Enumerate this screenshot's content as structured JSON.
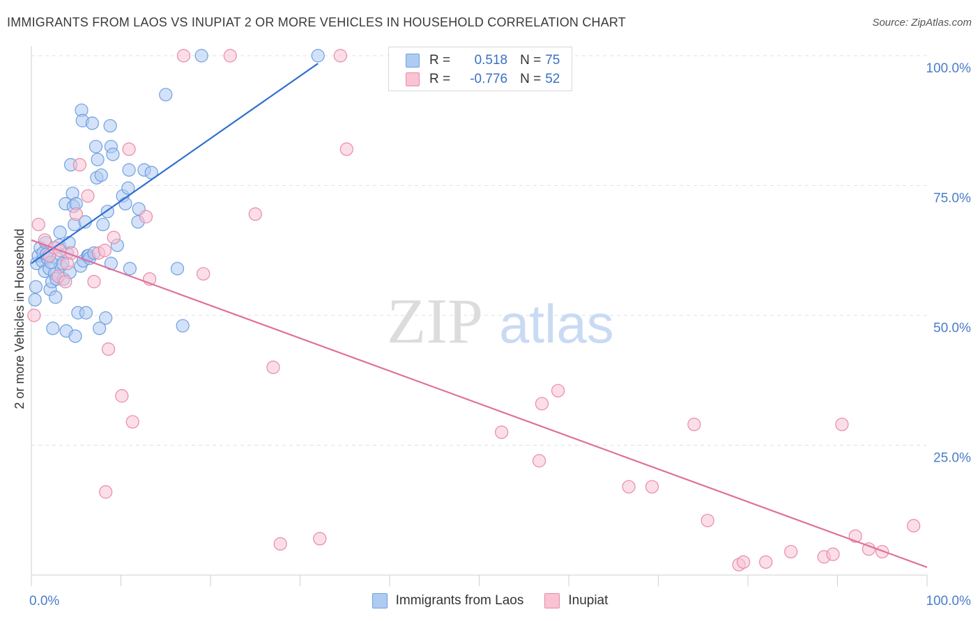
{
  "header": {
    "title": "IMMIGRANTS FROM LAOS VS INUPIAT 2 OR MORE VEHICLES IN HOUSEHOLD CORRELATION CHART",
    "source": "Source: ZipAtlas.com"
  },
  "watermark": {
    "zip": "ZIP",
    "atlas": "atlas"
  },
  "legend": {
    "rows": [
      {
        "r_label": "R =",
        "r_value": "0.518",
        "n_label": "N =",
        "n_value": "75",
        "color": "#aecbf2",
        "border": "#6f9fe0"
      },
      {
        "r_label": "R =",
        "r_value": "-0.776",
        "n_label": "N =",
        "n_value": "52",
        "color": "#f8c3d3",
        "border": "#e88aa8"
      }
    ]
  },
  "bottom_legend": {
    "items": [
      {
        "label": "Immigrants from Laos",
        "color": "#aecbf2",
        "border": "#6f9fe0"
      },
      {
        "label": "Inupiat",
        "color": "#f8c3d3",
        "border": "#e88aa8"
      }
    ]
  },
  "chart_data": {
    "type": "scatter",
    "title": "IMMIGRANTS FROM LAOS VS INUPIAT 2 OR MORE VEHICLES IN HOUSEHOLD CORRELATION CHART",
    "xlabel": "",
    "ylabel": "2 or more Vehicles in Household",
    "xlim": [
      0,
      100
    ],
    "ylim": [
      0,
      100
    ],
    "x_tick_labels": [
      "0.0%",
      "100.0%"
    ],
    "y_tick_labels": [
      {
        "value": 25,
        "label": "25.0%"
      },
      {
        "value": 50,
        "label": "50.0%"
      },
      {
        "value": 75,
        "label": "75.0%"
      },
      {
        "value": 100,
        "label": "100.0%"
      }
    ],
    "grid": true,
    "legend_position": "top-center",
    "series": [
      {
        "name": "Immigrants from Laos",
        "color": "#6f9fe0",
        "fill": "#aecbf2",
        "trend": {
          "x": [
            0,
            32
          ],
          "y": [
            60,
            98.5
          ],
          "color": "#2f6fd0"
        },
        "points": [
          [
            0.4,
            53.0
          ],
          [
            0.5,
            55.5
          ],
          [
            0.6,
            60.0
          ],
          [
            0.8,
            61.5
          ],
          [
            1.0,
            63.0
          ],
          [
            1.2,
            60.5
          ],
          [
            1.3,
            62.0
          ],
          [
            1.5,
            58.5
          ],
          [
            1.6,
            64.0
          ],
          [
            1.8,
            61.0
          ],
          [
            2.0,
            59.0
          ],
          [
            2.1,
            55.0
          ],
          [
            2.3,
            56.5
          ],
          [
            2.4,
            47.5
          ],
          [
            2.6,
            58.0
          ],
          [
            2.7,
            53.5
          ],
          [
            2.8,
            57.0
          ],
          [
            3.0,
            61.0
          ],
          [
            3.1,
            63.5
          ],
          [
            3.2,
            66.0
          ],
          [
            3.3,
            59.5
          ],
          [
            3.5,
            60.0
          ],
          [
            3.6,
            57.0
          ],
          [
            3.8,
            71.5
          ],
          [
            3.9,
            47.0
          ],
          [
            4.0,
            62.0
          ],
          [
            4.2,
            64.0
          ],
          [
            4.4,
            79.0
          ],
          [
            4.6,
            73.5
          ],
          [
            4.7,
            71.0
          ],
          [
            4.8,
            67.5
          ],
          [
            4.9,
            46.0
          ],
          [
            5.0,
            71.5
          ],
          [
            5.2,
            50.5
          ],
          [
            5.5,
            59.5
          ],
          [
            5.6,
            89.5
          ],
          [
            5.7,
            87.5
          ],
          [
            5.8,
            60.5
          ],
          [
            6.0,
            68.0
          ],
          [
            6.1,
            50.5
          ],
          [
            6.3,
            61.5
          ],
          [
            6.4,
            61.5
          ],
          [
            6.5,
            61.0
          ],
          [
            6.8,
            87.0
          ],
          [
            7.0,
            62.0
          ],
          [
            7.2,
            82.5
          ],
          [
            7.3,
            76.5
          ],
          [
            7.4,
            80.0
          ],
          [
            7.6,
            47.5
          ],
          [
            7.8,
            77.0
          ],
          [
            8.0,
            67.5
          ],
          [
            8.3,
            49.5
          ],
          [
            8.5,
            70.0
          ],
          [
            8.9,
            82.5
          ],
          [
            9.1,
            81.0
          ],
          [
            8.8,
            86.5
          ],
          [
            8.9,
            60.0
          ],
          [
            9.6,
            63.5
          ],
          [
            10.2,
            73.0
          ],
          [
            10.5,
            71.5
          ],
          [
            10.8,
            74.5
          ],
          [
            10.9,
            78.0
          ],
          [
            11.0,
            59.0
          ],
          [
            11.9,
            68.0
          ],
          [
            12.0,
            70.5
          ],
          [
            12.6,
            78.0
          ],
          [
            13.4,
            77.5
          ],
          [
            15.0,
            92.5
          ],
          [
            16.3,
            59.0
          ],
          [
            16.9,
            48.0
          ],
          [
            19.0,
            100.0
          ],
          [
            32.0,
            100.0
          ],
          [
            1.7,
            61.8
          ],
          [
            2.2,
            60.2
          ],
          [
            4.3,
            58.3
          ]
        ]
      },
      {
        "name": "Inupiat",
        "color": "#e88aa8",
        "fill": "#f8c3d3",
        "trend": {
          "x": [
            0,
            100
          ],
          "y": [
            64.5,
            1.5
          ],
          "color": "#e0709a"
        },
        "points": [
          [
            0.3,
            50.0
          ],
          [
            0.8,
            67.5
          ],
          [
            1.5,
            64.5
          ],
          [
            2.0,
            61.5
          ],
          [
            2.6,
            63.0
          ],
          [
            3.0,
            57.5
          ],
          [
            3.2,
            62.5
          ],
          [
            3.8,
            56.5
          ],
          [
            4.0,
            60.0
          ],
          [
            4.5,
            62.0
          ],
          [
            5.0,
            69.5
          ],
          [
            5.4,
            79.0
          ],
          [
            6.3,
            73.0
          ],
          [
            7.0,
            56.5
          ],
          [
            7.5,
            62.0
          ],
          [
            8.2,
            62.5
          ],
          [
            8.3,
            16.0
          ],
          [
            8.6,
            43.5
          ],
          [
            9.2,
            65.0
          ],
          [
            10.1,
            34.5
          ],
          [
            10.9,
            82.0
          ],
          [
            11.3,
            29.5
          ],
          [
            12.8,
            69.0
          ],
          [
            13.2,
            57.0
          ],
          [
            17.0,
            100.0
          ],
          [
            19.2,
            58.0
          ],
          [
            22.2,
            100.0
          ],
          [
            25.0,
            69.5
          ],
          [
            27.0,
            40.0
          ],
          [
            27.8,
            6.0
          ],
          [
            32.2,
            7.0
          ],
          [
            34.5,
            100.0
          ],
          [
            35.2,
            82.0
          ],
          [
            52.5,
            27.5
          ],
          [
            56.7,
            22.0
          ],
          [
            57.0,
            33.0
          ],
          [
            58.8,
            35.5
          ],
          [
            66.7,
            17.0
          ],
          [
            69.3,
            17.0
          ],
          [
            74.0,
            29.0
          ],
          [
            75.5,
            10.5
          ],
          [
            79.0,
            2.0
          ],
          [
            79.5,
            2.5
          ],
          [
            82.0,
            2.5
          ],
          [
            84.8,
            4.5
          ],
          [
            88.5,
            3.5
          ],
          [
            89.5,
            4.0
          ],
          [
            90.5,
            29.0
          ],
          [
            92.0,
            7.5
          ],
          [
            93.5,
            5.0
          ],
          [
            95.0,
            4.5
          ],
          [
            98.5,
            9.5
          ]
        ]
      }
    ]
  }
}
